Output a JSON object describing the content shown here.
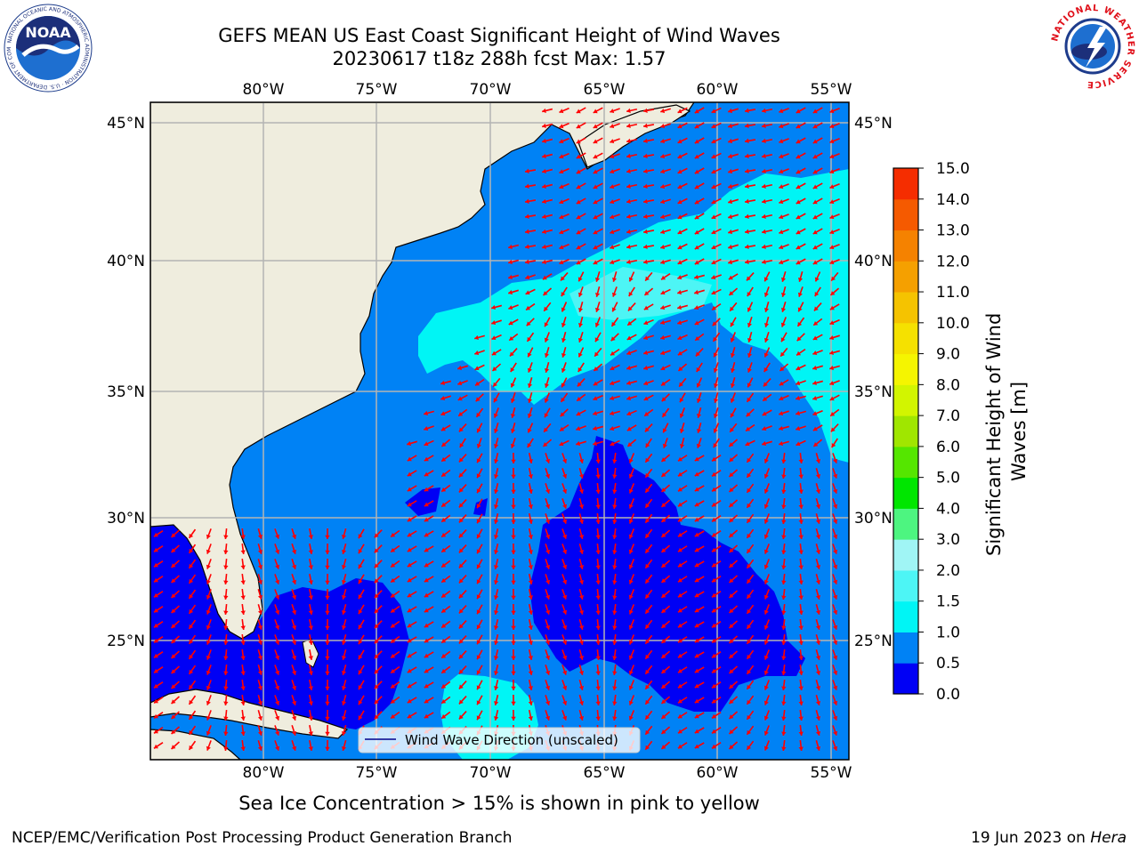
{
  "title": {
    "line1": "GEFS MEAN US East Coast Significant Height of Wind Waves",
    "line2": "20230617 t18z 288h fcst   Max: 1.57"
  },
  "map": {
    "lon_labels": [
      "80°W",
      "75°W",
      "70°W",
      "65°W",
      "60°W",
      "55°W"
    ],
    "lat_labels": [
      "45°N",
      "40°N",
      "35°N",
      "30°N",
      "25°N"
    ],
    "lon_range": [
      -85,
      -54.5
    ],
    "lat_range": [
      20.3,
      46
    ],
    "land_color": "#efedde",
    "coast_color": "#000000",
    "grid_color": "#b4b4b4",
    "arrow_color": "#ff0000",
    "legend_label": "Wind Wave Direction (unscaled)"
  },
  "colorbar": {
    "label": "Significant Height of Wind Waves [m]",
    "tick_labels": [
      "0.0",
      "0.5",
      "1.0",
      "1.5",
      "2.0",
      "3.0",
      "4.0",
      "5.0",
      "6.0",
      "7.0",
      "8.0",
      "9.0",
      "10.0",
      "11.0",
      "12.0",
      "13.0",
      "14.0",
      "15.0"
    ],
    "colors": [
      "#0000f5",
      "#0082f5",
      "#00f5f5",
      "#4df5f5",
      "#a0f5f5",
      "#4df580",
      "#00e600",
      "#55e600",
      "#a0e600",
      "#d2f500",
      "#f5f500",
      "#f5e100",
      "#f5c300",
      "#f5a000",
      "#f58200",
      "#f55a00",
      "#f52d00",
      "#f50000"
    ]
  },
  "footer": {
    "sea_ice_note": "Sea Ice Concentration > 15% is shown in pink to yellow",
    "credit": "NCEP/EMC/Verification Post Processing Product Generation Branch",
    "date": "19 Jun 2023 on ",
    "machine": "Hera"
  },
  "logos": {
    "noaa_text": "NOAA",
    "nws_text": "NATIONAL WEATHER SERVICE"
  }
}
